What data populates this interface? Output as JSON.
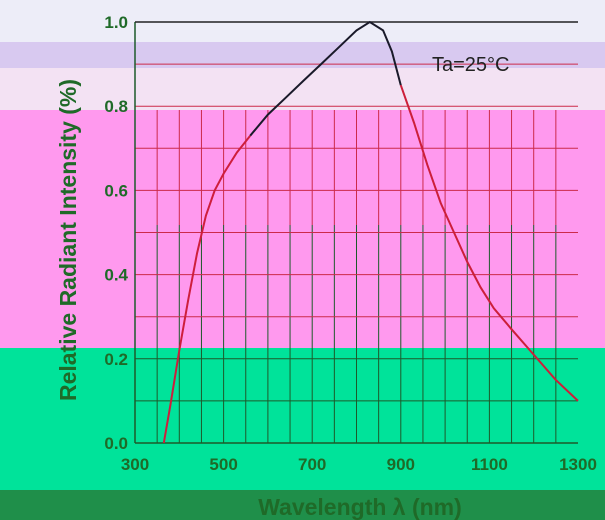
{
  "colors": {
    "band_top": "#ededf8",
    "band_lavender": "#d8c9f0",
    "band_light": "#f3e2f3",
    "band_pink": "#ff99ee",
    "band_green": "#00e39a",
    "band_bottom": "#1f8f4a",
    "grid_upper": "#cc2a4a",
    "grid_lower": "#1d5a2a",
    "tick_text": "#1f6a28",
    "axis_title": "#1f6a28",
    "curve_left": "#ce1e3c",
    "curve_dark": "#1a1a2a",
    "curve_right": "#cc1f3a"
  },
  "chart_data": {
    "type": "line",
    "xlabel": "Wavelength λ (nm)",
    "ylabel": "Relative Radiant Intensity (%)",
    "xlim": [
      300,
      1300
    ],
    "ylim": [
      0.0,
      1.0
    ],
    "xticks": [
      300,
      500,
      700,
      900,
      1100,
      1300
    ],
    "xtick_labels": [
      "300",
      "500",
      "700",
      "900",
      "1100",
      "1300"
    ],
    "yticks": [
      0.0,
      0.2,
      0.4,
      0.6,
      0.8,
      1.0
    ],
    "ytick_labels": [
      "0.0",
      "0.2",
      "0.4",
      "0.6",
      "0.8",
      "1.0"
    ],
    "grid": true,
    "annotation": "Ta=25°C",
    "series": [
      {
        "x": [
          365,
          380,
          400,
          420,
          440,
          460,
          480,
          500,
          530,
          560,
          600,
          640,
          680,
          720,
          760,
          800,
          830,
          860,
          880,
          900,
          930,
          960,
          990,
          1020,
          1050,
          1080,
          1110,
          1150,
          1200,
          1250,
          1300
        ],
        "y": [
          0.0,
          0.09,
          0.22,
          0.34,
          0.45,
          0.54,
          0.6,
          0.64,
          0.69,
          0.73,
          0.78,
          0.82,
          0.86,
          0.9,
          0.94,
          0.98,
          1.0,
          0.98,
          0.93,
          0.85,
          0.76,
          0.66,
          0.57,
          0.5,
          0.43,
          0.37,
          0.32,
          0.27,
          0.21,
          0.15,
          0.1
        ]
      }
    ]
  }
}
